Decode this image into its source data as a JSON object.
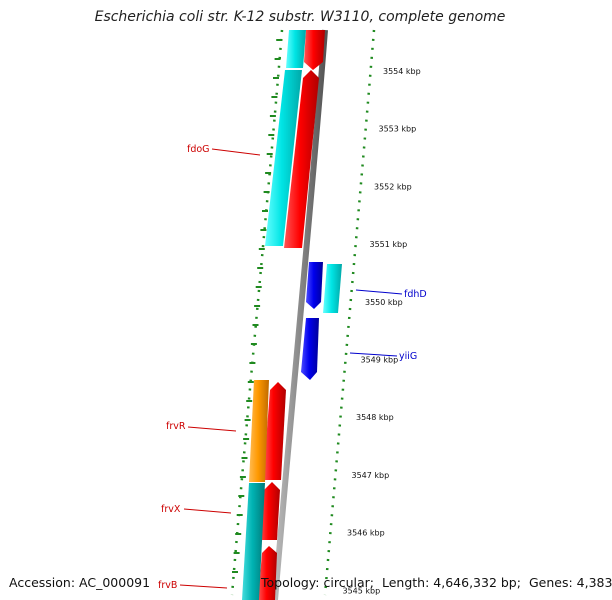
{
  "title": "Escherichia coli str. K-12 substr. W3110, complete genome",
  "footer": {
    "accession_label": "Accession:",
    "accession": "AC_000091",
    "topology_label": "Topology:",
    "topology": "circular",
    "length_label": "Length:",
    "length": "4,646,332 bp",
    "genes_label": "Genes:",
    "genes": "4,383"
  },
  "ruler": {
    "unit": "kbp",
    "ticks": [
      {
        "value": 3554,
        "label": "3554 kbp"
      },
      {
        "value": 3553,
        "label": "3553 kbp"
      },
      {
        "value": 3552,
        "label": "3552 kbp"
      },
      {
        "value": 3551,
        "label": "3551 kbp"
      },
      {
        "value": 3550,
        "label": "3550 kbp"
      },
      {
        "value": 3549,
        "label": "3549 kbp"
      },
      {
        "value": 3548,
        "label": "3548 kbp"
      },
      {
        "value": 3547,
        "label": "3547 kbp"
      },
      {
        "value": 3546,
        "label": "3546 kbp"
      },
      {
        "value": 3545,
        "label": "3545 kbp"
      }
    ]
  },
  "genes": [
    {
      "name": "fdoG",
      "strand": "left",
      "color": "#cc0000"
    },
    {
      "name": "frvR",
      "strand": "left",
      "color": "#cc0000"
    },
    {
      "name": "frvX",
      "strand": "left",
      "color": "#cc0000"
    },
    {
      "name": "frvB",
      "strand": "left",
      "color": "#cc0000"
    },
    {
      "name": "fdhD",
      "strand": "right",
      "color": "#0000cc"
    },
    {
      "name": "yiiG",
      "strand": "right",
      "color": "#0000cc"
    }
  ],
  "colors": {
    "forward_cds": "#ff0000",
    "reverse_cds": "#0000ee",
    "gene_cyan": "#00e5e5",
    "gene_orange": "#ff9900",
    "gene_teal": "#00b3b3",
    "backbone": "#888888",
    "dotted_ring": "#228822"
  }
}
